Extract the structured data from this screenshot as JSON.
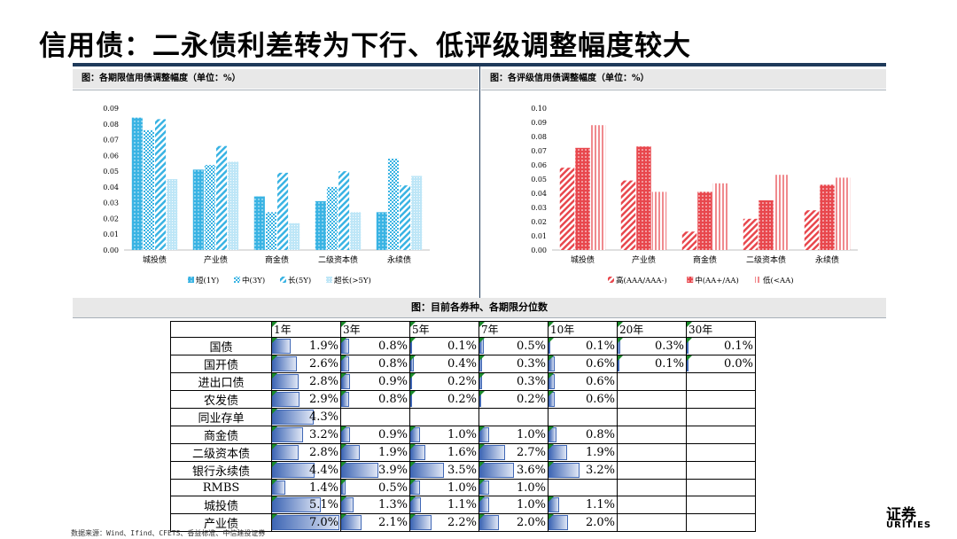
{
  "title": "信用债：二永债利差转为下行、低评级调整幅度较大",
  "left_panel_title": "图：各期限信用债调整幅度（单位：%）",
  "right_panel_title": "图：各评级信用债调整幅度（单位：%）",
  "table_title": "图：目前各券种、各期限分位数",
  "source": "数据来源：Wind、Ifind、CFETS、香益标准、中信建投证券",
  "logo_text": "证券",
  "logo_sub": "URITIES",
  "colors": {
    "accent_blue": "#39b3e3",
    "accent_red": "#e8474d",
    "title_bar": "#1f3a5a",
    "table_bar": "#3f67b5"
  },
  "chart_data": [
    {
      "type": "bar",
      "title": "图：各期限信用债调整幅度（单位：%）",
      "categories": [
        "城投债",
        "产业债",
        "商金债",
        "二级资本债",
        "永续债"
      ],
      "ylim": [
        0,
        0.09
      ],
      "yticks": [
        0.0,
        0.01,
        0.02,
        0.03,
        0.04,
        0.05,
        0.06,
        0.07,
        0.08,
        0.09
      ],
      "ytick_labels": [
        "0.00",
        "0.01",
        "0.02",
        "0.03",
        "0.04",
        "0.05",
        "0.06",
        "0.07",
        "0.08",
        "0.09"
      ],
      "legend_placement": "bottom",
      "series": [
        {
          "name": "短(1Y)",
          "color": "#39b3e3",
          "values": [
            0.084,
            0.051,
            0.034,
            0.031,
            0.024
          ]
        },
        {
          "name": "中(3Y)",
          "color": "#39b3e3",
          "values": [
            0.076,
            0.054,
            0.024,
            0.04,
            0.058
          ]
        },
        {
          "name": "长(5Y)",
          "color": "#39b3e3",
          "values": [
            0.083,
            0.066,
            0.049,
            0.05,
            0.041
          ]
        },
        {
          "name": "超长(>5Y)",
          "color": "#8fd3f0",
          "values": [
            0.045,
            0.056,
            0.017,
            0.024,
            0.047
          ]
        }
      ]
    },
    {
      "type": "bar",
      "title": "图：各评级信用债调整幅度（单位：%）",
      "categories": [
        "城投债",
        "产业债",
        "商金债",
        "二级资本债",
        "永续债"
      ],
      "ylim": [
        0,
        0.1
      ],
      "yticks": [
        0.0,
        0.01,
        0.02,
        0.03,
        0.04,
        0.05,
        0.06,
        0.07,
        0.08,
        0.09,
        0.1
      ],
      "ytick_labels": [
        "0.00",
        "0.01",
        "0.02",
        "0.03",
        "0.04",
        "0.05",
        "0.06",
        "0.07",
        "0.08",
        "0.09",
        "0.10"
      ],
      "legend_placement": "bottom",
      "series": [
        {
          "name": "高(AAA/AAA-)",
          "color": "#e8474d",
          "values": [
            0.058,
            0.049,
            0.013,
            0.022,
            0.028
          ]
        },
        {
          "name": "中(AA+/AA)",
          "color": "#e8474d",
          "values": [
            0.072,
            0.073,
            0.041,
            0.035,
            0.046
          ]
        },
        {
          "name": "低(<AA)",
          "color": "#f08a8e",
          "values": [
            0.088,
            0.041,
            0.047,
            0.053,
            0.051
          ]
        }
      ]
    },
    {
      "type": "table",
      "title": "图：目前各券种、各期限分位数",
      "columns": [
        "1年",
        "3年",
        "5年",
        "7年",
        "10年",
        "20年",
        "30年"
      ],
      "rows": [
        {
          "name": "国债",
          "values": [
            "1.9%",
            "0.8%",
            "0.1%",
            "0.5%",
            "0.1%",
            "0.3%",
            "0.1%"
          ],
          "bars": [
            1.9,
            0.8,
            0.1,
            0.5,
            0.1,
            0.3,
            0.1
          ]
        },
        {
          "name": "国开债",
          "values": [
            "2.6%",
            "0.8%",
            "0.4%",
            "0.3%",
            "0.6%",
            "0.1%",
            "0.0%"
          ],
          "bars": [
            2.6,
            0.8,
            0.4,
            0.3,
            0.6,
            0.1,
            0.0
          ]
        },
        {
          "name": "进出口债",
          "values": [
            "2.8%",
            "0.9%",
            "0.2%",
            "0.3%",
            "0.6%",
            "",
            ""
          ],
          "bars": [
            2.8,
            0.9,
            0.2,
            0.3,
            0.6,
            null,
            null
          ]
        },
        {
          "name": "农发债",
          "values": [
            "2.9%",
            "0.8%",
            "0.2%",
            "0.2%",
            "0.6%",
            "",
            ""
          ],
          "bars": [
            2.9,
            0.8,
            0.2,
            0.2,
            0.6,
            null,
            null
          ]
        },
        {
          "name": "同业存单",
          "values": [
            "4.3%",
            "",
            "",
            "",
            "",
            "",
            ""
          ],
          "bars": [
            4.3,
            null,
            null,
            null,
            null,
            null,
            null
          ]
        },
        {
          "name": "商金债",
          "values": [
            "3.2%",
            "0.9%",
            "1.0%",
            "1.0%",
            "0.8%",
            "",
            ""
          ],
          "bars": [
            3.2,
            0.9,
            1.0,
            1.0,
            0.8,
            null,
            null
          ]
        },
        {
          "name": "二级资本债",
          "values": [
            "2.8%",
            "1.9%",
            "1.6%",
            "2.7%",
            "1.9%",
            "",
            ""
          ],
          "bars": [
            2.8,
            1.9,
            1.6,
            2.7,
            1.9,
            null,
            null
          ]
        },
        {
          "name": "银行永续债",
          "values": [
            "4.4%",
            "3.9%",
            "3.5%",
            "3.6%",
            "3.2%",
            "",
            ""
          ],
          "bars": [
            4.4,
            3.9,
            3.5,
            3.6,
            3.2,
            null,
            null
          ]
        },
        {
          "name": "RMBS",
          "values": [
            "1.4%",
            "0.5%",
            "1.0%",
            "1.0%",
            "",
            "",
            ""
          ],
          "bars": [
            1.4,
            0.5,
            1.0,
            1.0,
            null,
            null,
            null
          ]
        },
        {
          "name": "城投债",
          "values": [
            "5.1%",
            "1.3%",
            "1.1%",
            "1.0%",
            "1.1%",
            "",
            ""
          ],
          "bars": [
            5.1,
            1.3,
            1.1,
            1.0,
            1.1,
            null,
            null
          ]
        },
        {
          "name": "产业债",
          "values": [
            "7.0%",
            "2.1%",
            "2.2%",
            "2.0%",
            "2.0%",
            "",
            ""
          ],
          "bars": [
            7.0,
            2.1,
            2.2,
            2.0,
            2.0,
            null,
            null
          ]
        }
      ]
    }
  ]
}
